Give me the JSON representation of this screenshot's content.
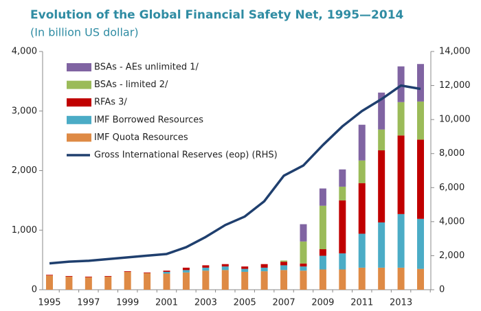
{
  "chart_data": {
    "type": "bar",
    "stacked": true,
    "title": "Evolution of the Global Financial Safety Net, 1995—2014",
    "subtitle": "(In billion US dollar)",
    "categories": [
      "1995",
      null,
      "1997",
      null,
      "1999",
      null,
      "2001",
      null,
      "2003",
      null,
      "2005",
      null,
      "2007",
      null,
      "2009",
      null,
      "2011",
      null,
      "2013",
      null
    ],
    "series": [
      {
        "name": "IMF Quota Resources",
        "color": "#de8a45",
        "values": [
          240,
          220,
          210,
          220,
          300,
          280,
          270,
          290,
          320,
          330,
          300,
          310,
          330,
          320,
          340,
          340,
          370,
          370,
          370,
          350
        ]
      },
      {
        "name": "IMF Borrowed Resources",
        "color": "#4bacc6",
        "values": [
          0,
          0,
          0,
          0,
          0,
          0,
          30,
          40,
          50,
          60,
          50,
          60,
          80,
          70,
          230,
          270,
          570,
          760,
          900,
          840
        ]
      },
      {
        "name": "RFAs 3/",
        "color": "#c00000",
        "values": [
          10,
          10,
          10,
          10,
          10,
          10,
          20,
          40,
          40,
          40,
          40,
          60,
          60,
          50,
          110,
          890,
          850,
          1210,
          1320,
          1330
        ]
      },
      {
        "name": "BSAs - limited 2/",
        "color": "#9bbb59",
        "values": [
          0,
          0,
          0,
          0,
          0,
          0,
          0,
          0,
          0,
          0,
          0,
          0,
          20,
          370,
          730,
          230,
          380,
          350,
          560,
          640
        ]
      },
      {
        "name": "BSAs - AEs unlimited 1/",
        "color": "#8064a2",
        "values": [
          0,
          0,
          0,
          0,
          0,
          0,
          0,
          0,
          0,
          0,
          0,
          0,
          0,
          290,
          290,
          290,
          600,
          620,
          600,
          630
        ]
      },
      {
        "name": "Gross International Reserves (eop) (RHS)",
        "type": "line",
        "axis": "y2",
        "color": "#1f3f6e",
        "values": [
          1550,
          1650,
          1700,
          1800,
          1900,
          2000,
          2100,
          2500,
          3100,
          3800,
          4300,
          5200,
          6700,
          7300,
          8500,
          9600,
          10500,
          11200,
          12000,
          11800
        ]
      }
    ],
    "ylim": [
      0,
      4000
    ],
    "yticks": [
      0,
      {
        "value": 1000,
        "label": "1,000"
      },
      {
        "value": 2000,
        "label": "2,000"
      },
      {
        "value": 3000,
        "label": "3,000"
      },
      {
        "value": 4000,
        "label": "4,000"
      }
    ],
    "y2lim": [
      0,
      14000
    ],
    "y2ticks": [
      0,
      {
        "value": 2000,
        "label": "2,000"
      },
      {
        "value": 4000,
        "label": "4,000"
      },
      {
        "value": 6000,
        "label": "6,000"
      },
      {
        "value": 8000,
        "label": "8,000"
      },
      {
        "value": 10000,
        "label": "10,000"
      },
      {
        "value": 12000,
        "label": "12,000"
      },
      {
        "value": 14000,
        "label": "14,000"
      }
    ],
    "legend": "top-left"
  }
}
